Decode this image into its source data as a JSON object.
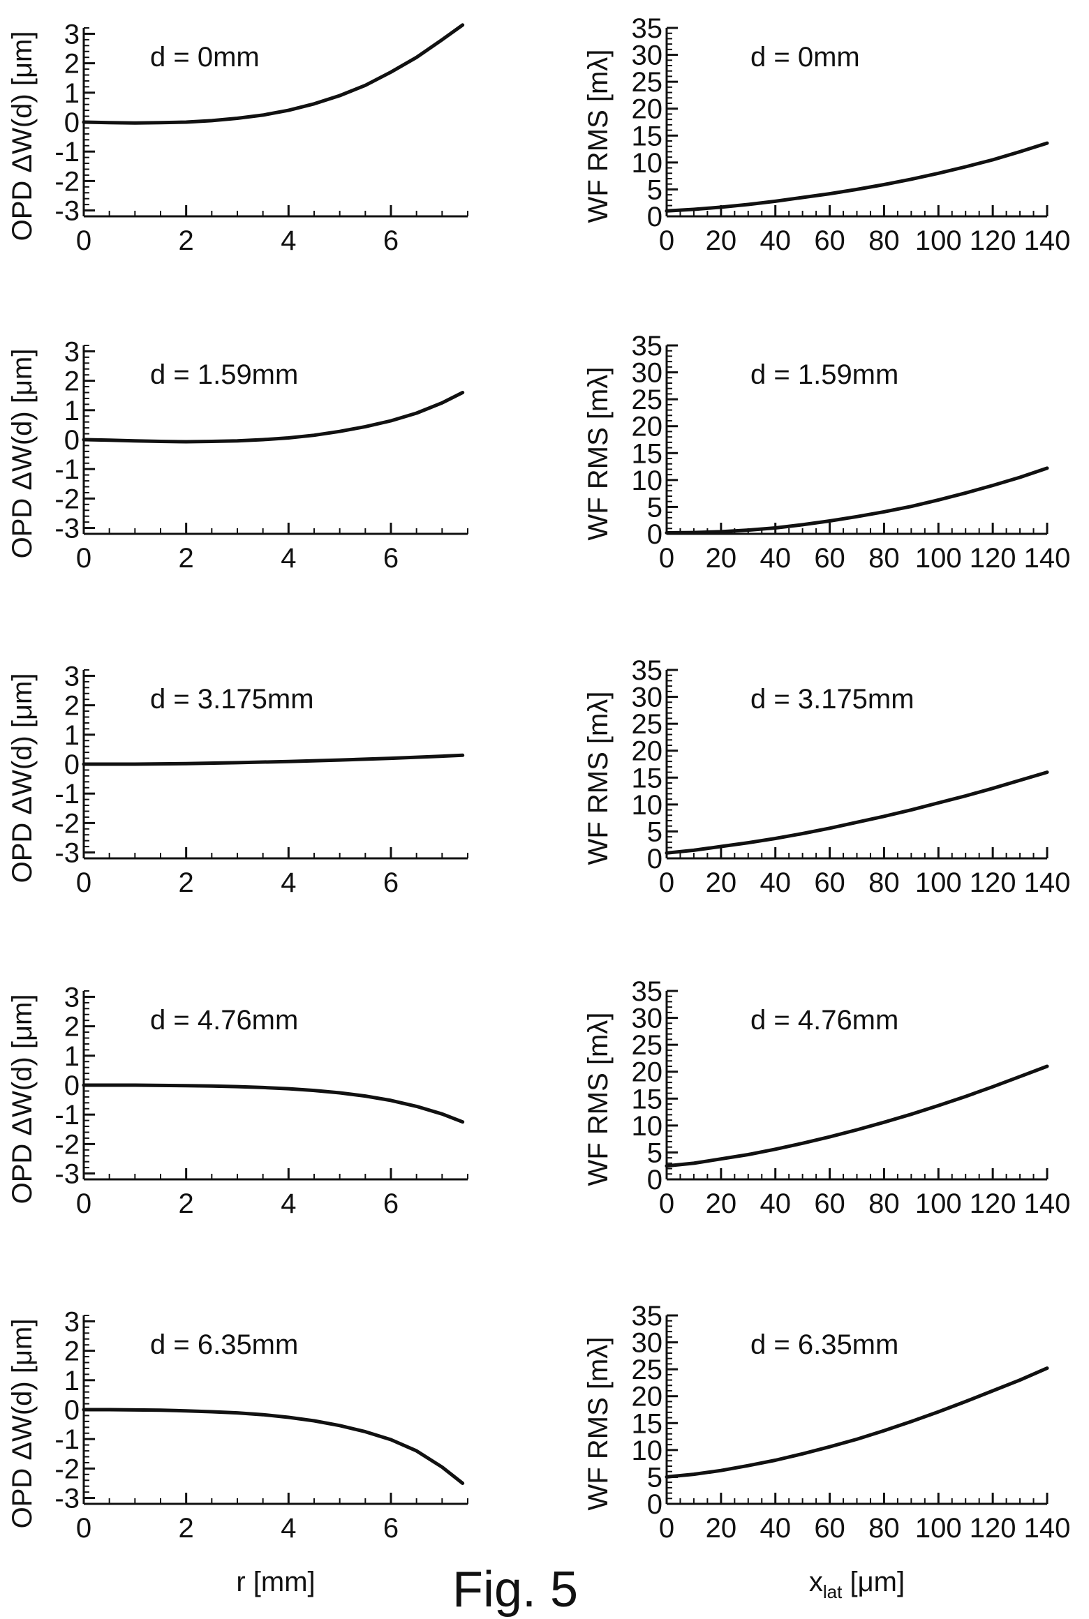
{
  "figure_label": "Fig. 5",
  "chart_data": [
    {
      "id": "opd-1",
      "type": "line",
      "annotation": "d = 0mm",
      "ylabel": "OPD ΔW(d) [μm]",
      "xlabel": "",
      "xlim": [
        0,
        7.5
      ],
      "ylim": [
        -3.2,
        3.2
      ],
      "x_ticks": [
        0,
        2,
        4,
        6
      ],
      "y_ticks": [
        3,
        2,
        1,
        0,
        -1,
        -2,
        -3
      ],
      "y_tick_labels": [
        "3",
        "2",
        "1",
        "0",
        "-1",
        "-2",
        "-3"
      ],
      "series": [
        {
          "x": [
            0,
            0.5,
            1,
            1.5,
            2,
            2.5,
            3,
            3.5,
            4,
            4.5,
            5,
            5.5,
            6,
            6.5,
            7,
            7.4
          ],
          "y": [
            0,
            -0.02,
            -0.03,
            -0.02,
            0.0,
            0.05,
            0.13,
            0.24,
            0.4,
            0.62,
            0.9,
            1.25,
            1.7,
            2.2,
            2.8,
            3.3
          ]
        }
      ]
    },
    {
      "id": "wf-1",
      "type": "line",
      "annotation": "d = 0mm",
      "ylabel": "WF RMS [mλ]",
      "xlabel": "",
      "xlim": [
        0,
        140
      ],
      "ylim": [
        0,
        35
      ],
      "x_ticks": [
        0,
        20,
        40,
        60,
        80,
        100,
        120,
        140
      ],
      "y_ticks": [
        35,
        30,
        25,
        20,
        15,
        10,
        5,
        0
      ],
      "series": [
        {
          "x": [
            0,
            10,
            20,
            30,
            40,
            50,
            60,
            70,
            80,
            90,
            100,
            110,
            120,
            130,
            140
          ],
          "y": [
            1,
            1.3,
            1.7,
            2.2,
            2.8,
            3.5,
            4.2,
            5,
            5.9,
            6.9,
            8,
            9.2,
            10.5,
            12,
            13.6
          ]
        }
      ]
    },
    {
      "id": "opd-2",
      "type": "line",
      "annotation": "d = 1.59mm",
      "ylabel": "OPD ΔW(d) [μm]",
      "xlabel": "",
      "xlim": [
        0,
        7.5
      ],
      "ylim": [
        -3.2,
        3.2
      ],
      "x_ticks": [
        0,
        2,
        4,
        6
      ],
      "y_ticks": [
        3,
        2,
        1,
        0,
        -1,
        -2,
        -3
      ],
      "y_tick_labels": [
        "3",
        "2",
        "1",
        "0",
        "-1",
        "-2",
        "-3"
      ],
      "series": [
        {
          "x": [
            0,
            0.5,
            1,
            1.5,
            2,
            2.5,
            3,
            3.5,
            4,
            4.5,
            5,
            5.5,
            6,
            6.5,
            7,
            7.4
          ],
          "y": [
            0,
            -0.02,
            -0.04,
            -0.06,
            -0.07,
            -0.06,
            -0.04,
            0.0,
            0.06,
            0.15,
            0.28,
            0.44,
            0.64,
            0.9,
            1.25,
            1.6
          ]
        }
      ]
    },
    {
      "id": "wf-2",
      "type": "line",
      "annotation": "d = 1.59mm",
      "ylabel": "WF RMS [mλ]",
      "xlabel": "",
      "xlim": [
        0,
        140
      ],
      "ylim": [
        0,
        35
      ],
      "x_ticks": [
        0,
        20,
        40,
        60,
        80,
        100,
        120,
        140
      ],
      "y_ticks": [
        35,
        30,
        25,
        20,
        15,
        10,
        5,
        0
      ],
      "series": [
        {
          "x": [
            0,
            10,
            20,
            30,
            40,
            50,
            60,
            70,
            80,
            90,
            100,
            110,
            120,
            130,
            140
          ],
          "y": [
            0.2,
            0.25,
            0.4,
            0.7,
            1.1,
            1.7,
            2.4,
            3.2,
            4.1,
            5.1,
            6.3,
            7.6,
            9,
            10.5,
            12.2
          ]
        }
      ]
    },
    {
      "id": "opd-3",
      "type": "line",
      "annotation": "d = 3.175mm",
      "ylabel": "OPD ΔW(d) [μm]",
      "xlabel": "",
      "xlim": [
        0,
        7.5
      ],
      "ylim": [
        -3.2,
        3.2
      ],
      "x_ticks": [
        0,
        2,
        4,
        6
      ],
      "y_ticks": [
        3,
        2,
        1,
        0,
        -1,
        -2,
        -3
      ],
      "y_tick_labels": [
        "3",
        "2",
        "1",
        "0",
        "-1",
        "-2",
        "-3"
      ],
      "series": [
        {
          "x": [
            0,
            1,
            2,
            3,
            4,
            5,
            6,
            7,
            7.4
          ],
          "y": [
            0,
            0.0,
            0.02,
            0.05,
            0.09,
            0.14,
            0.2,
            0.27,
            0.3
          ]
        }
      ]
    },
    {
      "id": "wf-3",
      "type": "line",
      "annotation": "d = 3.175mm",
      "ylabel": "WF RMS [mλ]",
      "xlabel": "",
      "xlim": [
        0,
        140
      ],
      "ylim": [
        0,
        35
      ],
      "x_ticks": [
        0,
        20,
        40,
        60,
        80,
        100,
        120,
        140
      ],
      "y_ticks": [
        35,
        30,
        25,
        20,
        15,
        10,
        5,
        0
      ],
      "series": [
        {
          "x": [
            0,
            10,
            20,
            30,
            40,
            50,
            60,
            70,
            80,
            90,
            100,
            110,
            120,
            130,
            140
          ],
          "y": [
            1,
            1.5,
            2.2,
            2.9,
            3.7,
            4.6,
            5.6,
            6.7,
            7.8,
            9,
            10.3,
            11.6,
            13,
            14.5,
            16
          ]
        }
      ]
    },
    {
      "id": "opd-4",
      "type": "line",
      "annotation": "d = 4.76mm",
      "ylabel": "OPD ΔW(d) [μm]",
      "xlabel": "",
      "xlim": [
        0,
        7.5
      ],
      "ylim": [
        -3.2,
        3.2
      ],
      "x_ticks": [
        0,
        2,
        4,
        6
      ],
      "y_ticks": [
        3,
        2,
        1,
        0,
        -1,
        -2,
        -3
      ],
      "y_tick_labels": [
        "3",
        "2",
        "1",
        "0",
        "-1",
        "-2",
        "-3"
      ],
      "series": [
        {
          "x": [
            0,
            0.5,
            1,
            1.5,
            2,
            2.5,
            3,
            3.5,
            4,
            4.5,
            5,
            5.5,
            6,
            6.5,
            7,
            7.4
          ],
          "y": [
            0,
            0,
            0,
            -0.01,
            -0.02,
            -0.03,
            -0.05,
            -0.08,
            -0.12,
            -0.18,
            -0.26,
            -0.37,
            -0.52,
            -0.72,
            -0.98,
            -1.25
          ]
        }
      ]
    },
    {
      "id": "wf-4",
      "type": "line",
      "annotation": "d = 4.76mm",
      "ylabel": "WF RMS [mλ]",
      "xlabel": "",
      "xlim": [
        0,
        140
      ],
      "ylim": [
        0,
        35
      ],
      "x_ticks": [
        0,
        20,
        40,
        60,
        80,
        100,
        120,
        140
      ],
      "y_ticks": [
        35,
        30,
        25,
        20,
        15,
        10,
        5,
        0
      ],
      "series": [
        {
          "x": [
            0,
            10,
            20,
            30,
            40,
            50,
            60,
            70,
            80,
            90,
            100,
            110,
            120,
            130,
            140
          ],
          "y": [
            2.5,
            3,
            3.8,
            4.6,
            5.6,
            6.7,
            7.9,
            9.2,
            10.6,
            12.1,
            13.7,
            15.4,
            17.2,
            19.1,
            21
          ]
        }
      ]
    },
    {
      "id": "opd-5",
      "type": "line",
      "annotation": "d = 6.35mm",
      "ylabel": "OPD ΔW(d) [μm]",
      "xlabel": "r [mm]",
      "xlim": [
        0,
        7.5
      ],
      "ylim": [
        -3.2,
        3.2
      ],
      "x_ticks": [
        0,
        2,
        4,
        6
      ],
      "y_ticks": [
        3,
        2,
        1,
        0,
        -1,
        -2,
        -3
      ],
      "y_tick_labels": [
        "3",
        "2",
        "1",
        "0",
        "-1",
        "-2",
        "-3"
      ],
      "series": [
        {
          "x": [
            0,
            0.5,
            1,
            1.5,
            2,
            2.5,
            3,
            3.5,
            4,
            4.5,
            5,
            5.5,
            6,
            6.5,
            7,
            7.4
          ],
          "y": [
            0,
            0,
            -0.01,
            -0.02,
            -0.04,
            -0.07,
            -0.11,
            -0.17,
            -0.26,
            -0.38,
            -0.54,
            -0.75,
            -1.02,
            -1.4,
            -1.95,
            -2.5
          ]
        }
      ]
    },
    {
      "id": "wf-5",
      "type": "line",
      "annotation": "d = 6.35mm",
      "ylabel": "WF RMS [mλ]",
      "xlabel": "x",
      "xlabel_sub": "lat",
      "xlabel_tail": " [μm]",
      "xlim": [
        0,
        140
      ],
      "ylim": [
        0,
        35
      ],
      "x_ticks": [
        0,
        20,
        40,
        60,
        80,
        100,
        120,
        140
      ],
      "y_ticks": [
        35,
        30,
        25,
        20,
        15,
        10,
        5,
        0
      ],
      "series": [
        {
          "x": [
            0,
            10,
            20,
            30,
            40,
            50,
            60,
            70,
            80,
            90,
            100,
            110,
            120,
            130,
            140
          ],
          "y": [
            5,
            5.5,
            6.2,
            7.1,
            8.1,
            9.3,
            10.6,
            12,
            13.6,
            15.3,
            17.1,
            19,
            21,
            23,
            25.2
          ]
        }
      ]
    }
  ]
}
